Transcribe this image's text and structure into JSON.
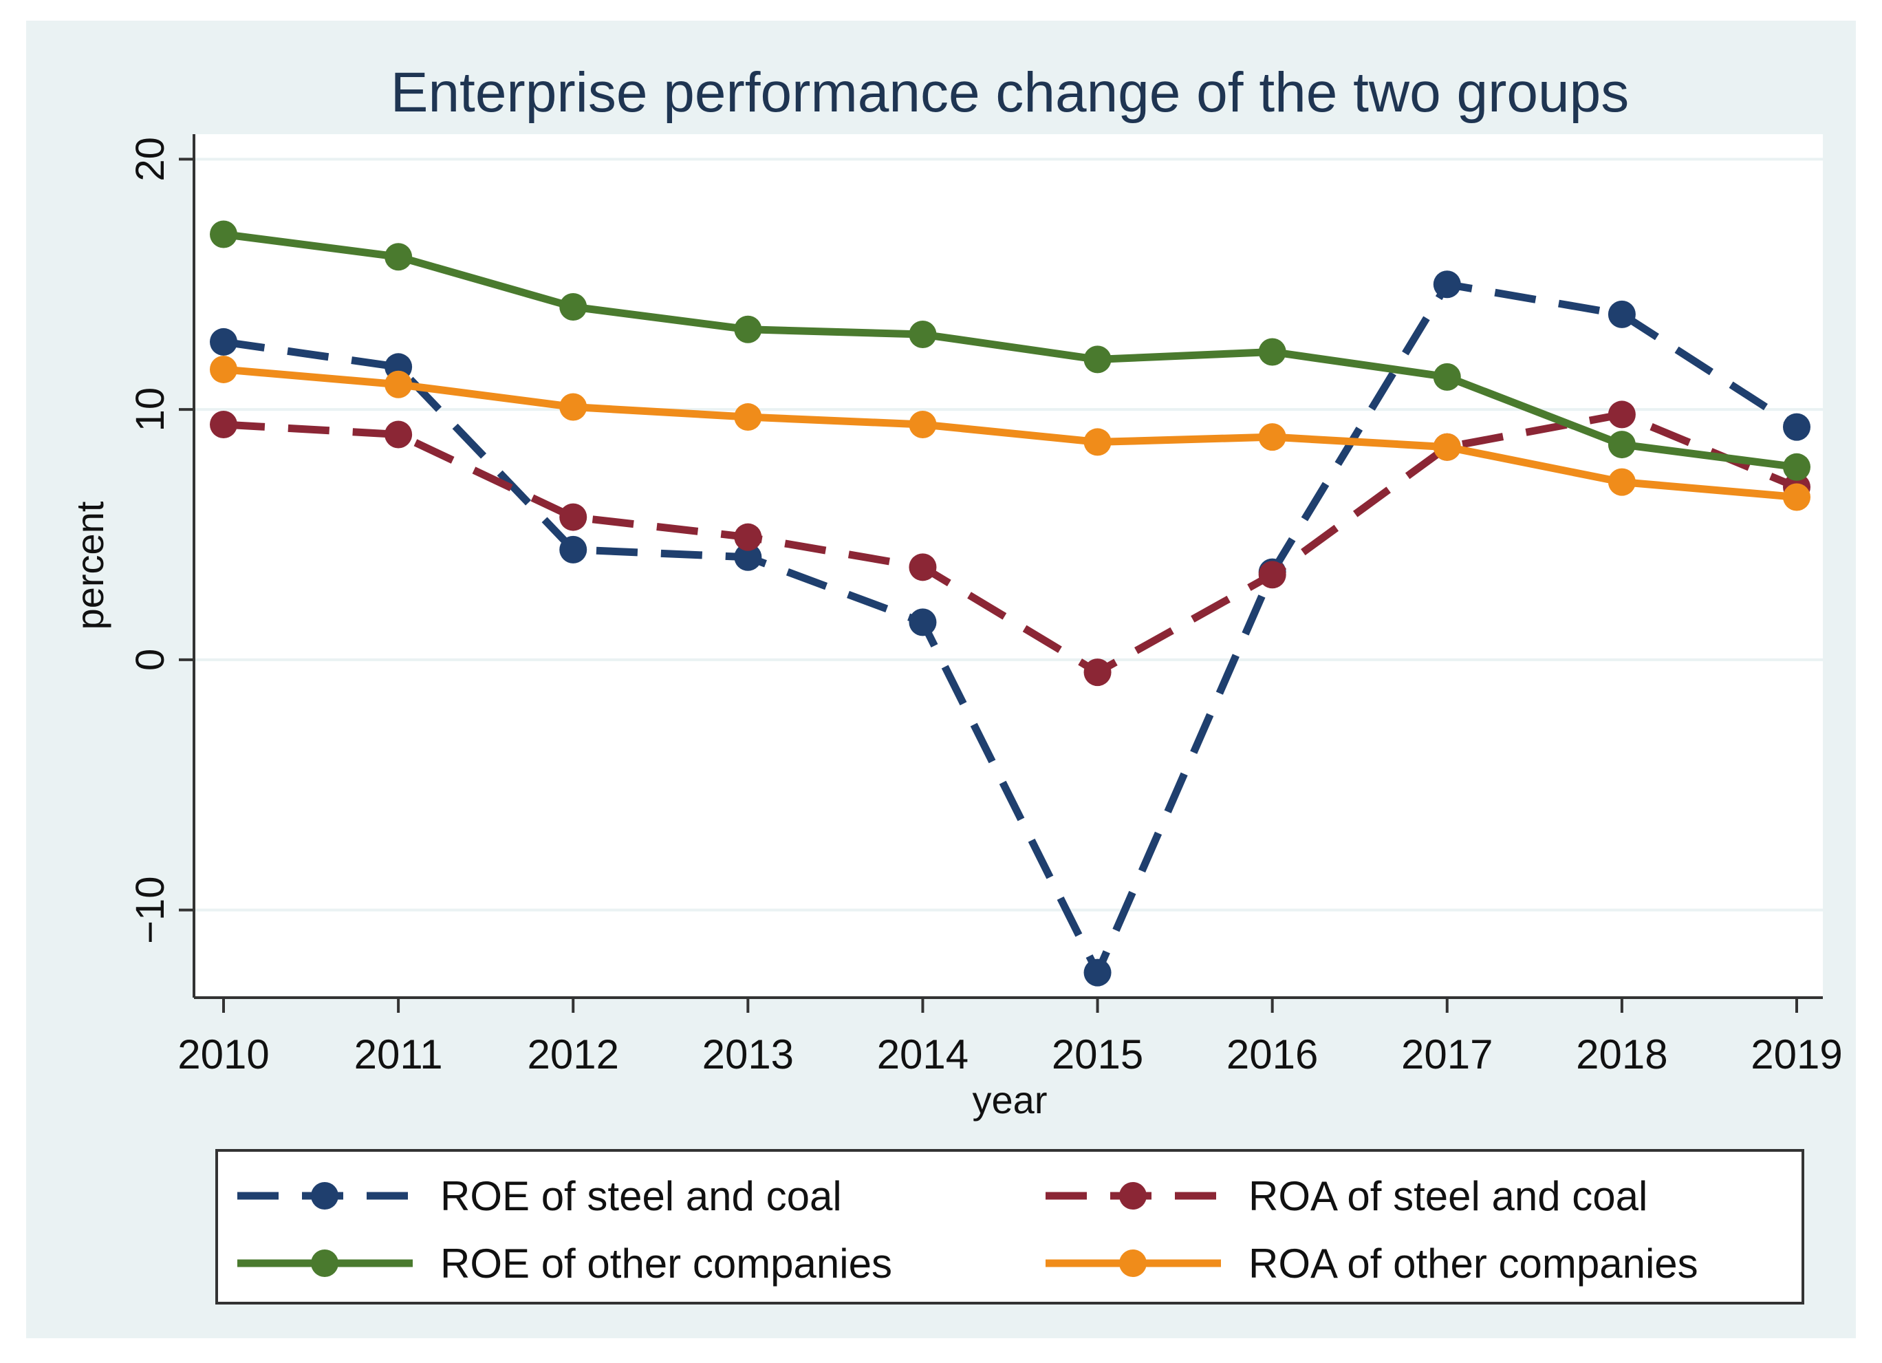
{
  "chart_data": {
    "type": "line",
    "title": "Enterprise performance change of the two groups",
    "xlabel": "year",
    "ylabel": "percent",
    "x": [
      2010,
      2011,
      2012,
      2013,
      2014,
      2015,
      2016,
      2017,
      2018,
      2019
    ],
    "x_tick_labels": [
      "2010",
      "2011",
      "2012",
      "2013",
      "2014",
      "2015",
      "2016",
      "2017",
      "2018",
      "2019"
    ],
    "y_ticks": [
      -10,
      0,
      10,
      20
    ],
    "y_tick_labels": [
      "−10",
      "0",
      "10",
      "20"
    ],
    "ylim": [
      -13.5,
      21
    ],
    "grid": true,
    "legend_position": "bottom",
    "series": [
      {
        "name": "ROE of steel and coal",
        "color": "#1f3f6e",
        "style": "dashed",
        "values": [
          12.7,
          11.7,
          4.4,
          4.1,
          1.5,
          -12.5,
          3.5,
          15.0,
          13.8,
          9.3
        ]
      },
      {
        "name": "ROA of steel and coal",
        "color": "#8b2635",
        "style": "dashed",
        "values": [
          9.4,
          9.0,
          5.7,
          4.9,
          3.7,
          -0.5,
          3.4,
          8.5,
          9.8,
          6.9
        ]
      },
      {
        "name": "ROE of other companies",
        "color": "#4a7a2e",
        "style": "solid",
        "values": [
          17.0,
          16.1,
          14.1,
          13.2,
          13.0,
          12.0,
          12.3,
          11.3,
          8.6,
          7.7
        ]
      },
      {
        "name": "ROA of other companies",
        "color": "#f08c1a",
        "style": "solid",
        "values": [
          11.6,
          11.0,
          10.1,
          9.7,
          9.4,
          8.7,
          8.9,
          8.5,
          7.1,
          6.5
        ]
      }
    ]
  }
}
